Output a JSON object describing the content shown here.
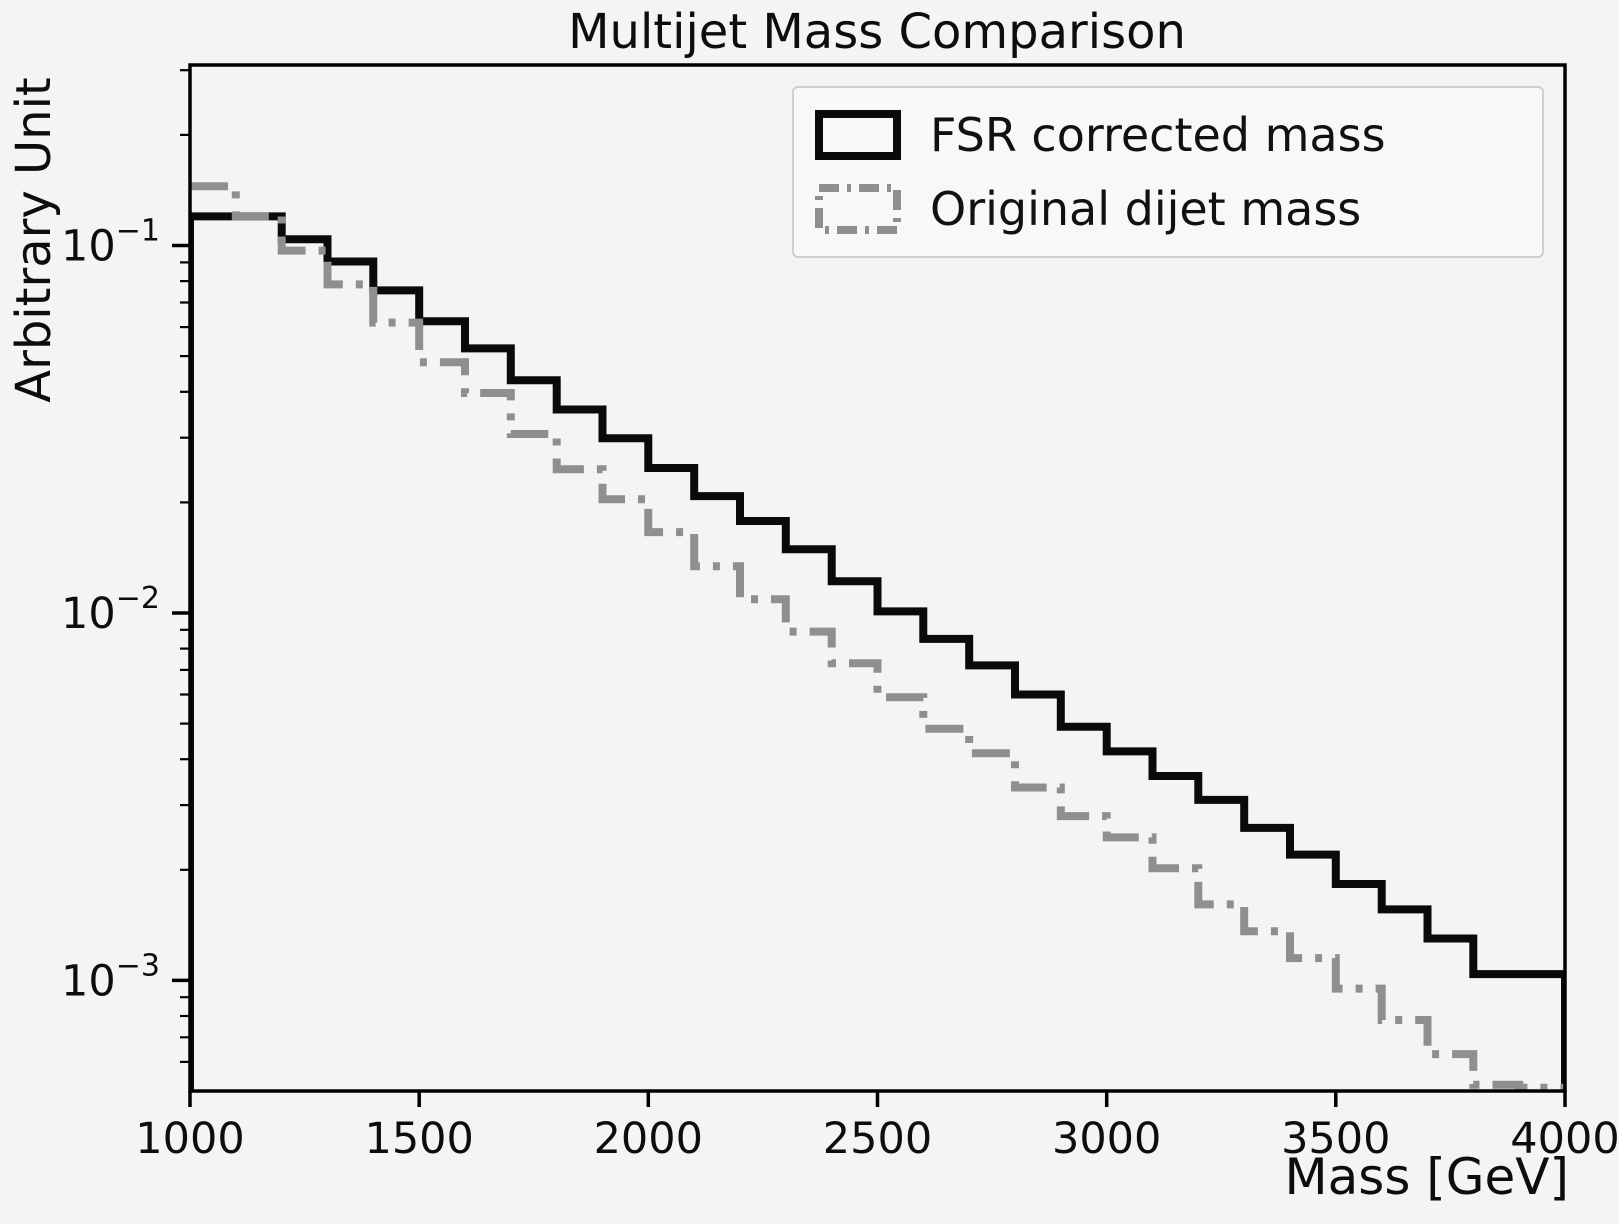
{
  "figure": {
    "background": "#f4f4f4",
    "spine_color": "#000000"
  },
  "chart_data": {
    "type": "step-histogram",
    "title": "Multijet Mass Comparison",
    "xlabel": "Mass [GeV]",
    "ylabel": "Arbitrary Unit",
    "yscale": "log",
    "grid": false,
    "legend_position": "upper right",
    "xlim": [
      1000,
      4000
    ],
    "ylim": [
      0.0005,
      0.31
    ],
    "n_bins": 30,
    "bin_width_gev": 100,
    "x_ticks": [
      1000,
      1500,
      2000,
      2500,
      3000,
      3500,
      4000
    ],
    "y_tick_exponents": [
      -1,
      -2,
      -3
    ],
    "series": [
      {
        "name": "FSR corrected mass",
        "color": "#0a0a0a",
        "style": "solid",
        "left_edge": true,
        "right_edge": true,
        "values": [
          0.12,
          0.12,
          0.104,
          0.0905,
          0.0755,
          0.0622,
          0.0525,
          0.043,
          0.0358,
          0.0299,
          0.0248,
          0.0208,
          0.0178,
          0.0149,
          0.0122,
          0.0101,
          0.0085,
          0.0072,
          0.006,
          0.0049,
          0.0042,
          0.0036,
          0.0031,
          0.0026,
          0.0022,
          0.00183,
          0.00156,
          0.0013,
          0.00104,
          0.00104
        ]
      },
      {
        "name": "Original dijet mass",
        "color": "#8f8f8f",
        "style": "dashdot",
        "left_edge": false,
        "right_edge": false,
        "values": [
          0.145,
          0.12,
          0.0969,
          0.0784,
          0.0617,
          0.0481,
          0.0397,
          0.0307,
          0.0246,
          0.0204,
          0.0166,
          0.0134,
          0.0109,
          0.0089,
          0.0073,
          0.0059,
          0.00484,
          0.00415,
          0.00335,
          0.0028,
          0.00245,
          0.00202,
          0.00161,
          0.00136,
          0.00115,
          0.00095,
          0.00078,
          0.00063,
          0.00052,
          0.00051
        ]
      }
    ]
  }
}
